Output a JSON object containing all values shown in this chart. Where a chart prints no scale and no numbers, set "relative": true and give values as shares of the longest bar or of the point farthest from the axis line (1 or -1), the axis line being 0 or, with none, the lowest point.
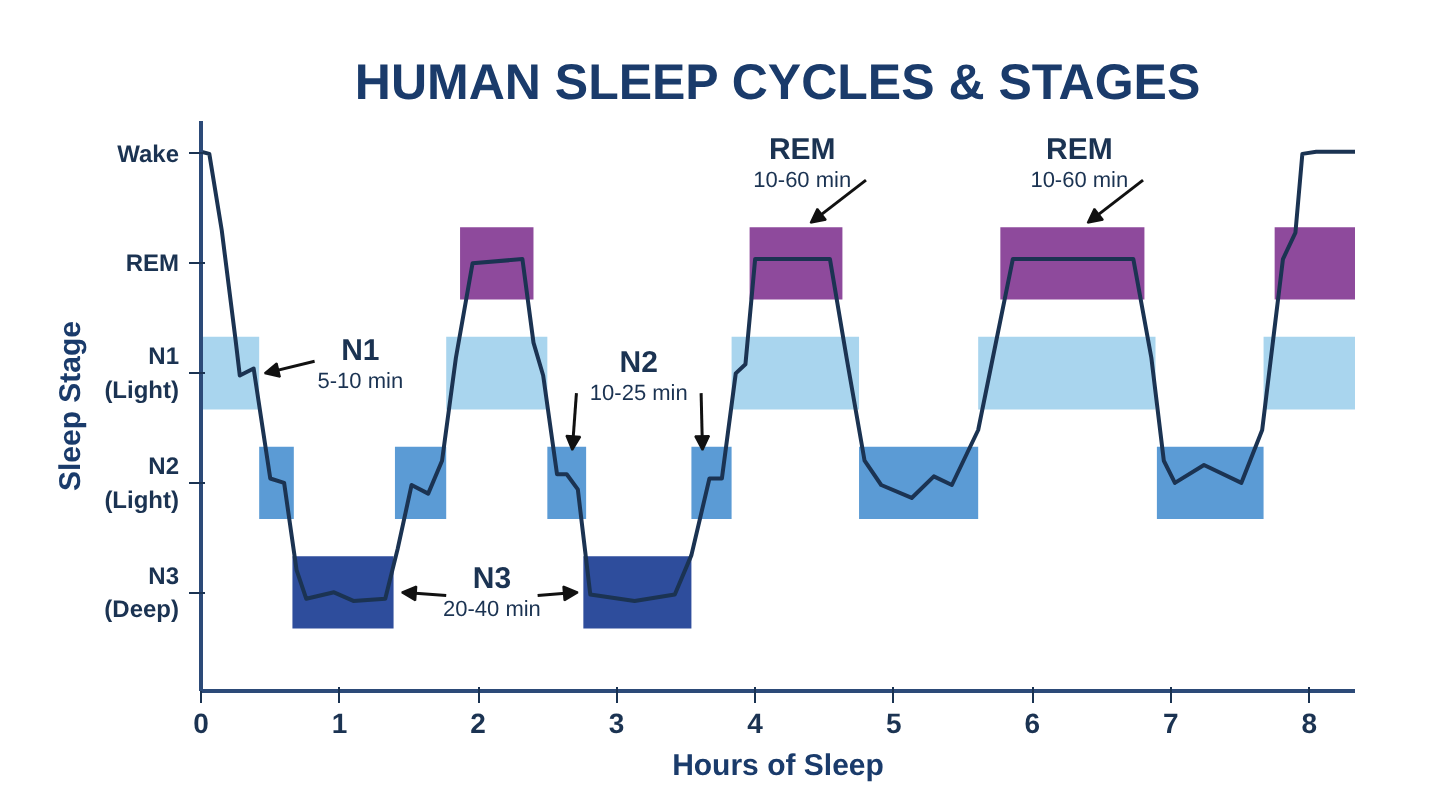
{
  "chart_data": {
    "type": "line",
    "relative": true,
    "title": "HUMAN SLEEP CYCLES & STAGES",
    "xlabel": "Hours of Sleep",
    "ylabel": "Sleep Stage",
    "xlim": [
      0,
      8.33
    ],
    "xticks": [
      0,
      1,
      2,
      3,
      4,
      5,
      6,
      7,
      8
    ],
    "grid": false,
    "series": [
      {
        "color": "#8e4a9c",
        "x": [
          1.87,
          2.4,
          3.2,
          3.96,
          4.63,
          5.2,
          5.77,
          6.81,
          7.3,
          7.75,
          8.33
        ],
        "values": [
          null,
          null,
          null,
          null,
          null,
          null,
          null,
          null,
          null,
          null,
          null
        ],
        "lower": [
          0.726,
          0.726,
          null,
          0.726,
          0.726,
          null,
          0.726,
          0.726,
          null,
          0.726,
          0.726
        ],
        "upper": [
          0.86,
          0.86,
          null,
          0.86,
          0.86,
          null,
          0.86,
          0.86,
          null,
          0.86,
          0.86
        ]
      },
      {
        "color": "#a9d5ee",
        "x": [
          0,
          0.42,
          1.0,
          1.77,
          2.5,
          3.2,
          3.83,
          4.75,
          5.2,
          5.61,
          6.89,
          7.3,
          7.67,
          8.33
        ],
        "values": [
          null,
          null,
          null,
          null,
          null,
          null,
          null,
          null,
          null,
          null,
          null,
          null,
          null,
          null
        ],
        "lower": [
          0.522,
          0.522,
          null,
          0.522,
          0.522,
          null,
          0.522,
          0.522,
          null,
          0.522,
          0.522,
          null,
          0.522,
          0.522
        ],
        "upper": [
          0.657,
          0.657,
          null,
          0.657,
          0.657,
          null,
          0.657,
          0.657,
          null,
          0.657,
          0.657,
          null,
          0.657,
          0.657
        ]
      },
      {
        "color": "#5b9bd5",
        "x": [
          0.42,
          0.67,
          1.0,
          1.4,
          1.77,
          2.1,
          2.5,
          2.78,
          3.2,
          3.54,
          3.83,
          4.3,
          4.75,
          5.61,
          6.2,
          6.9,
          7.67
        ],
        "values": [
          null,
          null,
          null,
          null,
          null,
          null,
          null,
          null,
          null,
          null,
          null,
          null,
          null,
          null,
          null,
          null,
          null
        ],
        "lower": [
          0.319,
          0.319,
          null,
          0.319,
          0.319,
          null,
          0.319,
          0.319,
          null,
          0.319,
          0.319,
          null,
          0.319,
          0.319,
          null,
          0.319,
          0.319
        ],
        "upper": [
          0.453,
          0.453,
          null,
          0.453,
          0.453,
          null,
          0.453,
          0.453,
          null,
          0.453,
          0.453,
          null,
          0.453,
          0.453,
          null,
          0.453,
          0.453
        ]
      },
      {
        "color": "#2e4d9c",
        "x": [
          0.66,
          1.39,
          2.1,
          2.76,
          3.54
        ],
        "values": [
          null,
          null,
          null,
          null,
          null
        ],
        "lower": [
          0.116,
          0.116,
          null,
          0.116,
          0.116
        ],
        "upper": [
          0.25,
          0.25,
          null,
          0.25,
          0.25
        ]
      },
      {
        "color": "#1b3352",
        "x": [
          0,
          0.06,
          0.15,
          0.25,
          0.28,
          0.38,
          0.5,
          0.6,
          0.69,
          0.76,
          0.96,
          1.1,
          1.33,
          1.42,
          1.52,
          1.64,
          1.74,
          1.84,
          1.96,
          2.32,
          2.4,
          2.47,
          2.57,
          2.64,
          2.72,
          2.81,
          3.13,
          3.42,
          3.54,
          3.67,
          3.76,
          3.86,
          3.93,
          4.0,
          4.54,
          4.66,
          4.79,
          4.91,
          5.13,
          5.29,
          5.42,
          5.61,
          5.86,
          6.73,
          6.86,
          6.95,
          7.03,
          7.24,
          7.51,
          7.66,
          7.81,
          7.9,
          7.95,
          8.05,
          8.33
        ],
        "values": [
          1.0,
          0.996,
          0.854,
          0.65,
          0.585,
          0.598,
          0.394,
          0.386,
          0.224,
          0.171,
          0.183,
          0.167,
          0.171,
          0.264,
          0.382,
          0.366,
          0.427,
          0.618,
          0.793,
          0.801,
          0.646,
          0.585,
          0.402,
          0.402,
          0.374,
          0.179,
          0.167,
          0.179,
          0.252,
          0.394,
          0.394,
          0.589,
          0.606,
          0.801,
          0.801,
          0.618,
          0.427,
          0.382,
          0.358,
          0.398,
          0.382,
          0.484,
          0.801,
          0.801,
          0.618,
          0.427,
          0.386,
          0.419,
          0.386,
          0.484,
          0.801,
          0.85,
          0.996,
          1.0,
          1.0
        ]
      }
    ],
    "annotations": [
      "Wake",
      "REM",
      "N1\n(Light)",
      "N2\n(Light)",
      "N3\n(Deep)",
      {
        "text": "N1\n5-10 min",
        "x": 0.42,
        "y": 0.589
      },
      {
        "text": "N2\n10-25 min",
        "x": 2.64,
        "y": 0.402
      },
      {
        "text": "N3\n20-40 min",
        "x": 1.39,
        "y": 0.183
      },
      {
        "text": "REM\n10-60 min",
        "x": 4.4,
        "y": 0.86
      },
      {
        "text": "REM\n10-60 min",
        "x": 6.4,
        "y": 0.86
      }
    ]
  }
}
